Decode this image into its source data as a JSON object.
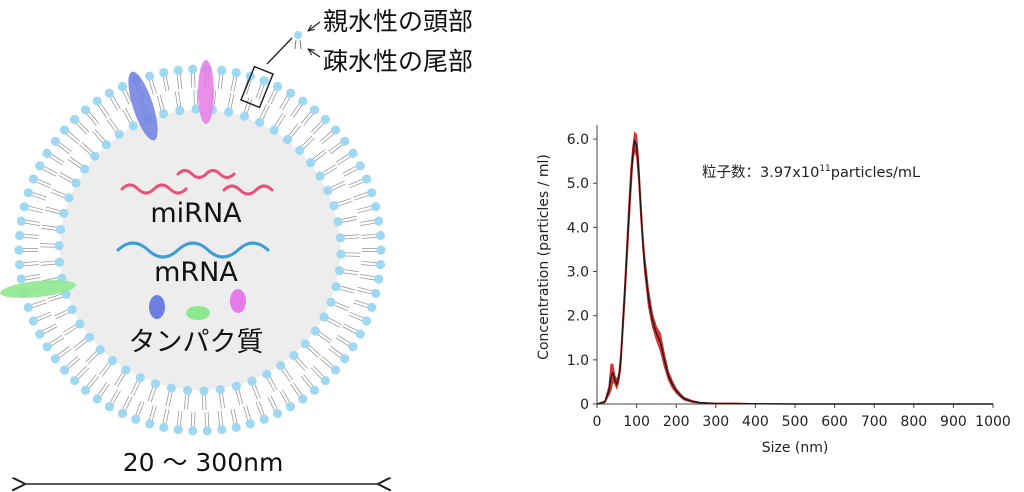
{
  "exosome": {
    "labels": {
      "head": "親水性の頭部",
      "tail": "疎水性の尾部",
      "mirna": "miRNA",
      "mrna": "mRNA",
      "protein": "タンパク質",
      "size_range": "20 〜 300nm"
    },
    "colors": {
      "head": "#9fd8f3",
      "tail": "#8e8e8e",
      "interior": "#ededed",
      "mirna": "#e8527a",
      "mrna": "#3d9bd8",
      "protein_blue": "#6f7fe0",
      "protein_green": "#8ee88e",
      "protein_pink": "#e57be6"
    }
  },
  "chart_data": {
    "type": "line",
    "title": "",
    "xlabel": "Size (nm)",
    "ylabel": "Concentration (particles / ml)",
    "xlim": [
      0,
      1000
    ],
    "ylim": [
      0,
      6.5
    ],
    "x_ticks": [
      "0",
      "100",
      "200",
      "300",
      "400",
      "500",
      "600",
      "700",
      "800",
      "900",
      "1000"
    ],
    "y_ticks": [
      "0",
      "1.0",
      "2.0",
      "3.0",
      "4.0",
      "5.0",
      "6.0"
    ],
    "annotation": {
      "prefix": "粒子数：3.97x10",
      "sup": "11",
      "suffix": "particles/mL"
    },
    "series": [
      {
        "color": "#1a1a1a",
        "band_color": "#e02020",
        "x": [
          0,
          20,
          30,
          35,
          40,
          45,
          50,
          55,
          60,
          70,
          80,
          85,
          90,
          95,
          100,
          105,
          110,
          115,
          120,
          130,
          140,
          150,
          160,
          170,
          180,
          190,
          200,
          210,
          220,
          240,
          260,
          280,
          300,
          350,
          400,
          500,
          600,
          700,
          800,
          900,
          1000
        ],
        "values": [
          0,
          0.05,
          0.3,
          0.6,
          0.7,
          0.55,
          0.45,
          0.6,
          1.0,
          2.5,
          4.2,
          5.0,
          5.6,
          5.95,
          5.85,
          5.3,
          4.5,
          3.8,
          3.2,
          2.4,
          1.9,
          1.6,
          1.4,
          1.0,
          0.65,
          0.45,
          0.3,
          0.2,
          0.12,
          0.06,
          0.03,
          0.02,
          0.01,
          0.01,
          0.005,
          0,
          0,
          0,
          0,
          0,
          0
        ],
        "band": [
          0,
          0.02,
          0.1,
          0.3,
          0.2,
          0.1,
          0.1,
          0.1,
          0.2,
          0.25,
          0.3,
          0.3,
          0.2,
          0.2,
          0.25,
          0.25,
          0.25,
          0.2,
          0.2,
          0.2,
          0.15,
          0.15,
          0.2,
          0.15,
          0.1,
          0.08,
          0.05,
          0.04,
          0.03,
          0.02,
          0.01,
          0.01,
          0.01,
          0.01,
          0.005,
          0,
          0,
          0,
          0,
          0,
          0
        ]
      }
    ]
  }
}
